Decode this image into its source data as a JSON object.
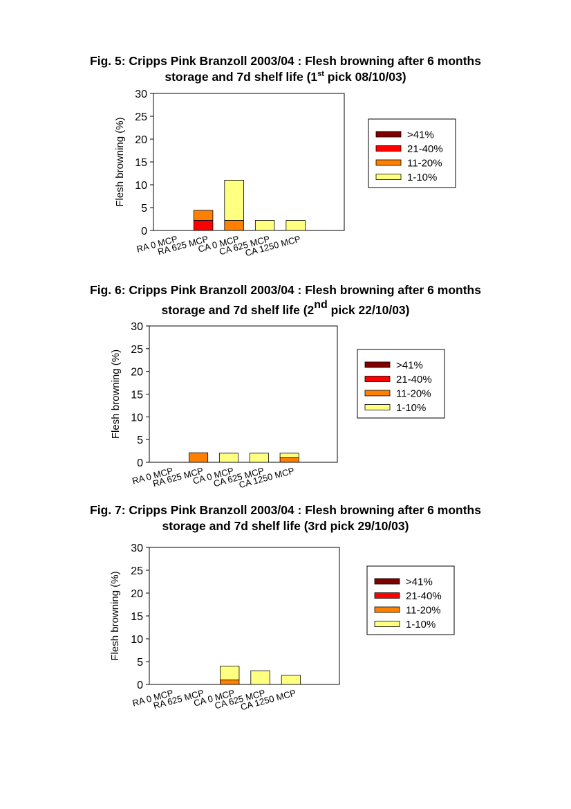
{
  "figures": [
    {
      "title_line1": "Fig. 5: Cripps Pink Branzoll 2003/04 : Flesh browning after 6 months",
      "title_line2_a": "storage and 7d shelf life (1",
      "title_line2_sup": "st",
      "title_line2_b": " pick  08/10/03)"
    },
    {
      "title_line1": "Fig. 6: Cripps Pink Branzoll 2003/04 : Flesh browning after 6 months",
      "title_line2_a": "storage and 7d shelf life (2",
      "title_line2_sup": "nd",
      "title_line2_b": " pick 22/10/03)"
    },
    {
      "title_line1": "Fig. 7: Cripps Pink Branzoll 2003/04 : Flesh browning after 6 months",
      "title_line2_a": "storage and 7d shelf life (3rd pick 29/10/03)",
      "title_line2_sup": "",
      "title_line2_b": ""
    }
  ],
  "chart_data": [
    {
      "type": "bar",
      "stacked": true,
      "categories": [
        "RA 0 MCP",
        "RA 625 MCP",
        "CA 0 MCP",
        "CA 625 MCP",
        "CA 1250 MCP"
      ],
      "series": [
        {
          "name": "1-10%",
          "color": "#ffff80",
          "values": [
            0,
            0,
            8.8,
            2.2,
            2.2
          ]
        },
        {
          "name": "11-20%",
          "color": "#ff8000",
          "values": [
            0,
            2.2,
            2.2,
            0,
            0
          ]
        },
        {
          "name": "21-40%",
          "color": "#ff0000",
          "values": [
            0,
            2.2,
            0,
            0,
            0
          ]
        },
        {
          "name": ">41%",
          "color": "#800000",
          "values": [
            0,
            0,
            0,
            0,
            0
          ]
        }
      ],
      "ylabel": "Flesh browning (%)",
      "ylim": [
        0,
        30
      ],
      "yticks": [
        "0",
        "5",
        "10",
        "15",
        "20",
        "25",
        "30"
      ],
      "legend_position": "right",
      "grid": false
    },
    {
      "type": "bar",
      "stacked": true,
      "categories": [
        "RA 0 MCP",
        "RA 625 MCP",
        "CA 0 MCP",
        "CA 625 MCP",
        "CA 1250 MCP"
      ],
      "series": [
        {
          "name": "1-10%",
          "color": "#ffff80",
          "values": [
            0,
            0,
            2,
            2,
            1
          ]
        },
        {
          "name": "11-20%",
          "color": "#ff8000",
          "values": [
            0,
            2.1,
            0,
            0,
            1
          ]
        },
        {
          "name": "21-40%",
          "color": "#ff0000",
          "values": [
            0,
            0,
            0,
            0,
            0
          ]
        },
        {
          "name": ">41%",
          "color": "#800000",
          "values": [
            0,
            0,
            0,
            0,
            0
          ]
        }
      ],
      "ylabel": "Flesh browning (%)",
      "ylim": [
        0,
        30
      ],
      "yticks": [
        "0",
        "5",
        "10",
        "15",
        "20",
        "25",
        "30"
      ],
      "legend_position": "right",
      "grid": false
    },
    {
      "type": "bar",
      "stacked": true,
      "categories": [
        "RA 0 MCP",
        "RA 625 MCP",
        "CA 0 MCP",
        "CA 625 MCP",
        "CA 1250 MCP"
      ],
      "series": [
        {
          "name": "1-10%",
          "color": "#ffff80",
          "values": [
            0,
            0,
            3,
            3,
            2
          ]
        },
        {
          "name": "11-20%",
          "color": "#ff8000",
          "values": [
            0,
            0,
            1,
            0,
            0
          ]
        },
        {
          "name": "21-40%",
          "color": "#ff0000",
          "values": [
            0,
            0,
            0,
            0,
            0
          ]
        },
        {
          "name": ">41%",
          "color": "#800000",
          "values": [
            0,
            0,
            0,
            0,
            0
          ]
        }
      ],
      "ylabel": "Flesh browning (%)",
      "ylim": [
        0,
        30
      ],
      "yticks": [
        "0",
        "5",
        "10",
        "15",
        "20",
        "25",
        "30"
      ],
      "legend_position": "right",
      "grid": false
    }
  ]
}
